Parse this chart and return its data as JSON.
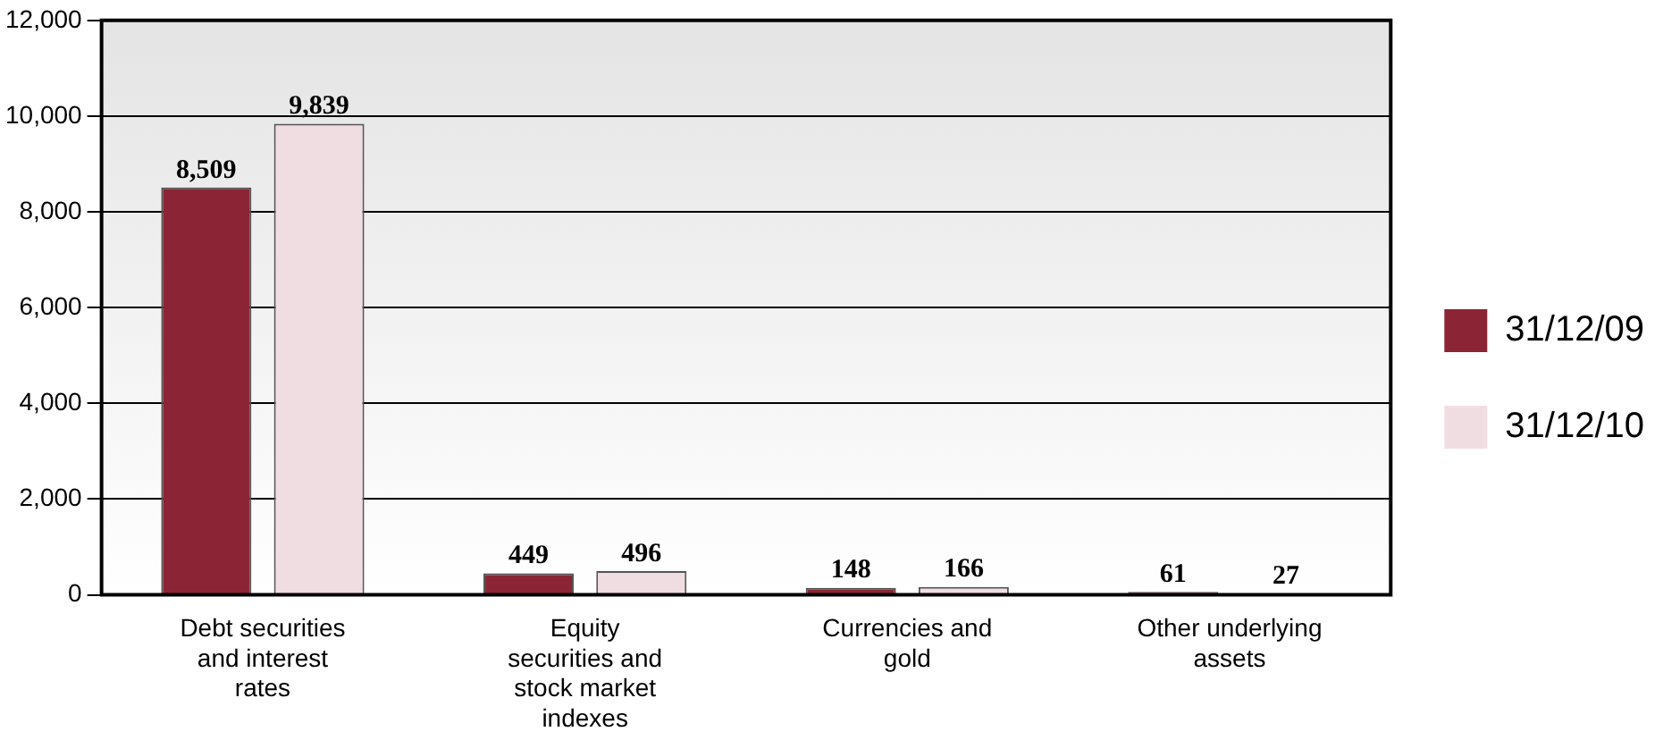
{
  "chart_data": {
    "type": "bar",
    "categories": [
      "Debt securities and interest rates",
      "Equity securities and stock market indexes",
      "Currencies and gold",
      "Other underlying assets"
    ],
    "series": [
      {
        "name": "31/12/09",
        "color": "#8b2535",
        "values": [
          8509,
          449,
          148,
          61
        ],
        "value_labels": [
          "8,509",
          "449",
          "148",
          "61"
        ]
      },
      {
        "name": "31/12/10",
        "color": "#f0dde2",
        "values": [
          9839,
          496,
          166,
          27
        ],
        "value_labels": [
          "9,839",
          "496",
          "166",
          "27"
        ]
      }
    ],
    "ylim": [
      0,
      12000
    ],
    "yticks": [
      0,
      {
        "value": 2000,
        "label": "2,000"
      },
      {
        "value": 4000,
        "label": "4,000"
      },
      {
        "value": 6000,
        "label": "6,000"
      },
      {
        "value": 8000,
        "label": "8,000"
      },
      {
        "value": 10000,
        "label": "10,000"
      },
      {
        "value": 12000,
        "label": "12,000"
      }
    ],
    "grid": "y",
    "legend": "right"
  }
}
